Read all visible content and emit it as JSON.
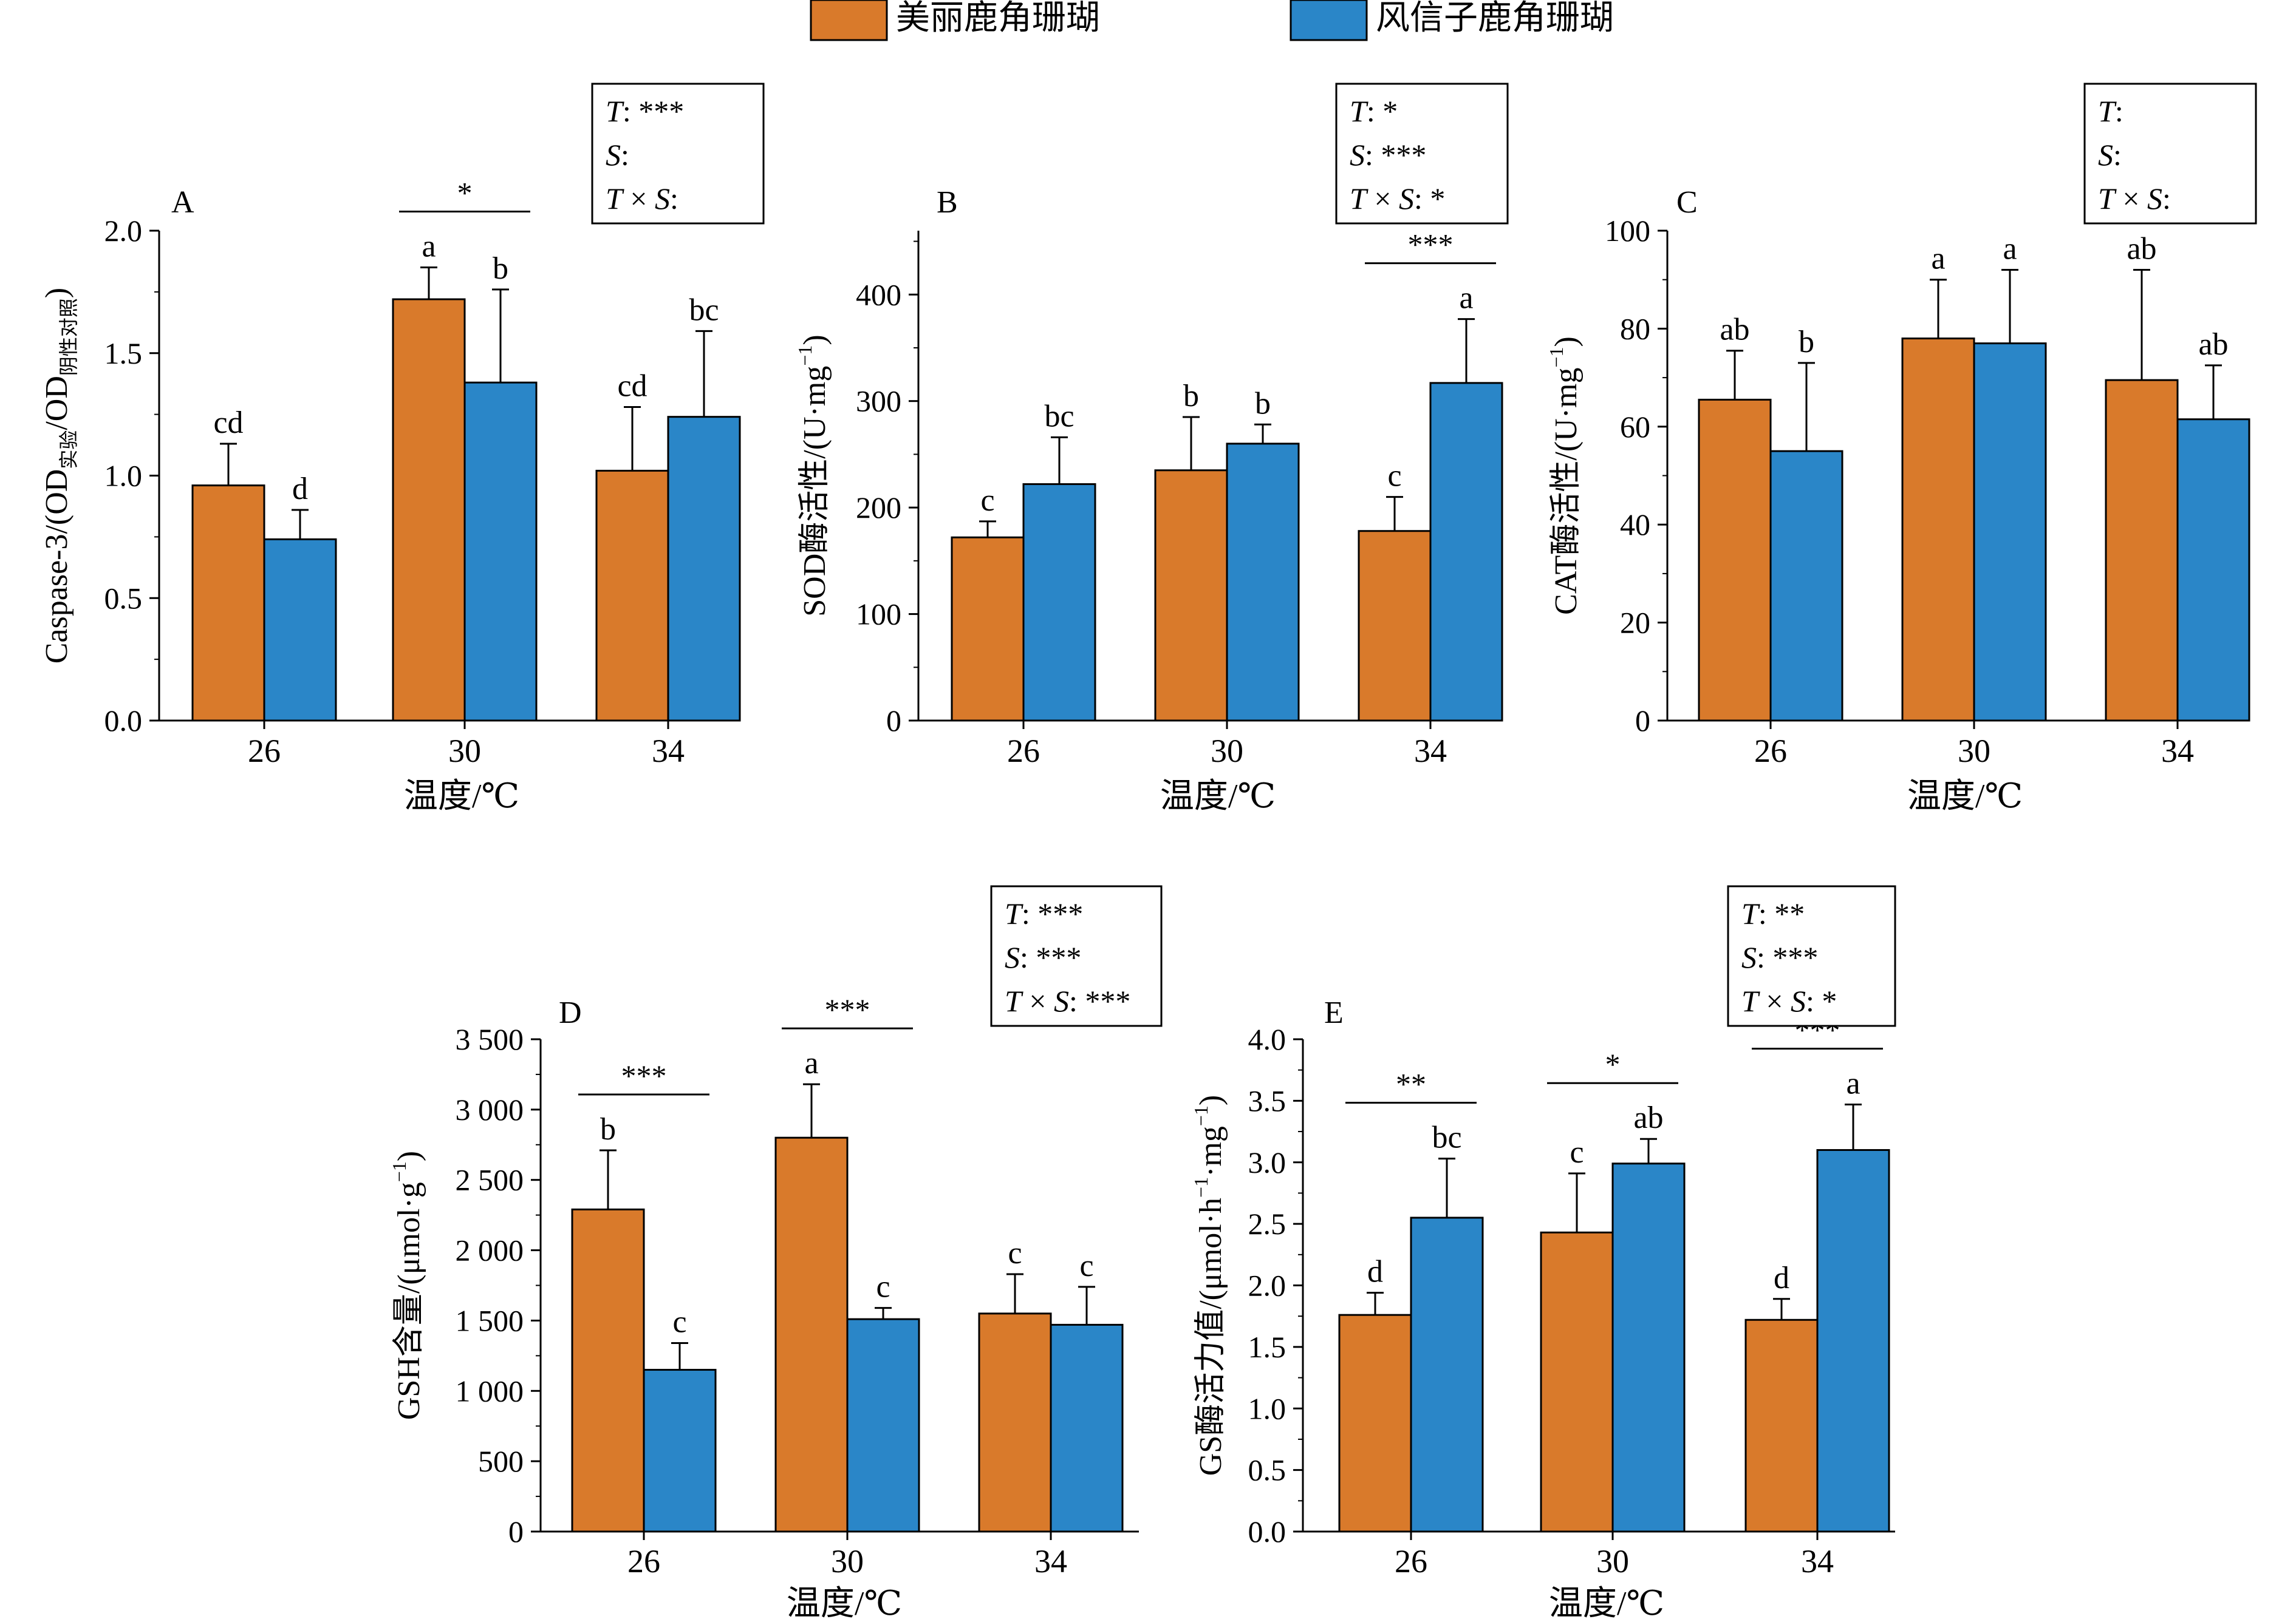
{
  "legend": {
    "items": [
      {
        "label": "美丽鹿角珊瑚",
        "color": "#D97A2B"
      },
      {
        "label": "风信子鹿角珊瑚",
        "color": "#2A86C8"
      }
    ]
  },
  "colors": {
    "species1": "#D97A2B",
    "species2": "#2A86C8"
  },
  "chart_data": [
    {
      "panel": "A",
      "type": "bar",
      "categories": [
        "26",
        "30",
        "34"
      ],
      "xlabel": "温度/℃",
      "ylabel_main": "Caspase-3/(OD",
      "ylabel_sub1": "实验",
      "ylabel_mid": "/OD",
      "ylabel_sub2": "阴性对照",
      "ylabel_end": ")",
      "ylim": [
        0,
        2.0
      ],
      "yticks": [
        {
          "v": 0,
          "label": "0.0"
        },
        {
          "v": 0.5,
          "label": "0.5"
        },
        {
          "v": 1.0,
          "label": "1.0"
        },
        {
          "v": 1.5,
          "label": "1.5"
        },
        {
          "v": 2.0,
          "label": "2.0"
        }
      ],
      "minor": 0.25,
      "series": [
        {
          "name": "美丽鹿角珊瑚",
          "values": [
            0.96,
            1.72,
            1.02
          ],
          "errors": [
            0.17,
            0.13,
            0.26
          ],
          "letters": [
            "cd",
            "a",
            "cd"
          ]
        },
        {
          "name": "风信子鹿角珊瑚",
          "values": [
            0.74,
            1.38,
            1.24
          ],
          "errors": [
            0.12,
            0.38,
            0.35
          ],
          "letters": [
            "d",
            "b",
            "bc"
          ]
        }
      ],
      "sig": [
        {
          "cat": 1,
          "label": "*"
        }
      ],
      "stats": [
        {
          "var": "T",
          "val": "***"
        },
        {
          "var": "S",
          "val": ""
        },
        {
          "var": "T × S",
          "val": ""
        }
      ]
    },
    {
      "panel": "B",
      "type": "bar",
      "categories": [
        "26",
        "30",
        "34"
      ],
      "xlabel": "温度/℃",
      "ylabel_main": "SOD酶活性/(U·mg",
      "ylabel_sup": "−1",
      "ylabel_end": ")",
      "ylim": [
        0,
        460
      ],
      "yticks": [
        {
          "v": 0,
          "label": "0"
        },
        {
          "v": 100,
          "label": "100"
        },
        {
          "v": 200,
          "label": "200"
        },
        {
          "v": 300,
          "label": "300"
        },
        {
          "v": 400,
          "label": "400"
        }
      ],
      "minor": 50,
      "series": [
        {
          "name": "美丽鹿角珊瑚",
          "values": [
            172,
            235,
            178
          ],
          "errors": [
            15,
            50,
            32
          ],
          "letters": [
            "c",
            "b",
            "c"
          ]
        },
        {
          "name": "风信子鹿角珊瑚",
          "values": [
            222,
            260,
            317
          ],
          "errors": [
            44,
            18,
            60
          ],
          "letters": [
            "bc",
            "b",
            "a"
          ]
        }
      ],
      "sig": [
        {
          "cat": 2,
          "label": "***"
        }
      ],
      "stats": [
        {
          "var": "T",
          "val": "*"
        },
        {
          "var": "S",
          "val": "***"
        },
        {
          "var": "T × S",
          "val": "*"
        }
      ]
    },
    {
      "panel": "C",
      "type": "bar",
      "categories": [
        "26",
        "30",
        "34"
      ],
      "xlabel": "温度/℃",
      "ylabel_main": "CAT酶活性/(U·mg",
      "ylabel_sup": "−1",
      "ylabel_end": ")",
      "ylim": [
        0,
        100
      ],
      "yticks": [
        {
          "v": 0,
          "label": "0"
        },
        {
          "v": 20,
          "label": "20"
        },
        {
          "v": 40,
          "label": "40"
        },
        {
          "v": 60,
          "label": "60"
        },
        {
          "v": 80,
          "label": "80"
        },
        {
          "v": 100,
          "label": "100"
        }
      ],
      "minor": 10,
      "series": [
        {
          "name": "美丽鹿角珊瑚",
          "values": [
            65.5,
            78,
            69.5
          ],
          "errors": [
            10,
            12,
            22.5
          ],
          "letters": [
            "ab",
            "a",
            "ab"
          ]
        },
        {
          "name": "风信子鹿角珊瑚",
          "values": [
            55,
            77,
            61.5
          ],
          "errors": [
            18,
            15,
            11
          ],
          "letters": [
            "b",
            "a",
            "ab"
          ]
        }
      ],
      "sig": [],
      "stats": [
        {
          "var": "T",
          "val": ""
        },
        {
          "var": "S",
          "val": ""
        },
        {
          "var": "T × S",
          "val": ""
        }
      ]
    },
    {
      "panel": "D",
      "type": "bar",
      "categories": [
        "26",
        "30",
        "34"
      ],
      "xlabel": "温度/℃",
      "ylabel_main": "GSH含量/(μmol·g",
      "ylabel_sup": "−1",
      "ylabel_end": ")",
      "ylim": [
        0,
        3500
      ],
      "yticks": [
        {
          "v": 0,
          "label": "0"
        },
        {
          "v": 500,
          "label": "500"
        },
        {
          "v": 1000,
          "label": "1 000"
        },
        {
          "v": 1500,
          "label": "1 500"
        },
        {
          "v": 2000,
          "label": "2 000"
        },
        {
          "v": 2500,
          "label": "2 500"
        },
        {
          "v": 3000,
          "label": "3 000"
        },
        {
          "v": 3500,
          "label": "3 500"
        }
      ],
      "minor": 250,
      "series": [
        {
          "name": "美丽鹿角珊瑚",
          "values": [
            2290,
            2800,
            1550
          ],
          "errors": [
            420,
            380,
            280
          ],
          "letters": [
            "b",
            "a",
            "c"
          ]
        },
        {
          "name": "风信子鹿角珊瑚",
          "values": [
            1150,
            1510,
            1470
          ],
          "errors": [
            190,
            80,
            270
          ],
          "letters": [
            "c",
            "c",
            "c"
          ]
        }
      ],
      "sig": [
        {
          "cat": 0,
          "label": "***"
        },
        {
          "cat": 1,
          "label": "***"
        }
      ],
      "stats": [
        {
          "var": "T",
          "val": "***"
        },
        {
          "var": "S",
          "val": "***"
        },
        {
          "var": "T × S",
          "val": "***"
        }
      ]
    },
    {
      "panel": "E",
      "type": "bar",
      "categories": [
        "26",
        "30",
        "34"
      ],
      "xlabel": "温度/℃",
      "ylabel_main": "GS酶活力值/(μmol·h",
      "ylabel_sup": "−1",
      "ylabel_mid": "·mg",
      "ylabel_sup2": "−1",
      "ylabel_end": ")",
      "ylim": [
        0,
        4.0
      ],
      "yticks": [
        {
          "v": 0,
          "label": "0.0"
        },
        {
          "v": 0.5,
          "label": "0.5"
        },
        {
          "v": 1.0,
          "label": "1.0"
        },
        {
          "v": 1.5,
          "label": "1.5"
        },
        {
          "v": 2.0,
          "label": "2.0"
        },
        {
          "v": 2.5,
          "label": "2.5"
        },
        {
          "v": 3.0,
          "label": "3.0"
        },
        {
          "v": 3.5,
          "label": "3.5"
        },
        {
          "v": 4.0,
          "label": "4.0"
        }
      ],
      "minor": 0.25,
      "series": [
        {
          "name": "美丽鹿角珊瑚",
          "values": [
            1.76,
            2.43,
            1.72
          ],
          "errors": [
            0.18,
            0.48,
            0.17
          ],
          "letters": [
            "d",
            "c",
            "d"
          ]
        },
        {
          "name": "风信子鹿角珊瑚",
          "values": [
            2.55,
            2.99,
            3.1
          ],
          "errors": [
            0.48,
            0.2,
            0.37
          ],
          "letters": [
            "bc",
            "ab",
            "a"
          ]
        }
      ],
      "sig": [
        {
          "cat": 0,
          "label": "**"
        },
        {
          "cat": 1,
          "label": "*"
        },
        {
          "cat": 2,
          "label": "***"
        }
      ],
      "stats": [
        {
          "var": "T",
          "val": "**"
        },
        {
          "var": "S",
          "val": "***"
        },
        {
          "var": "T × S",
          "val": "*"
        }
      ]
    }
  ]
}
